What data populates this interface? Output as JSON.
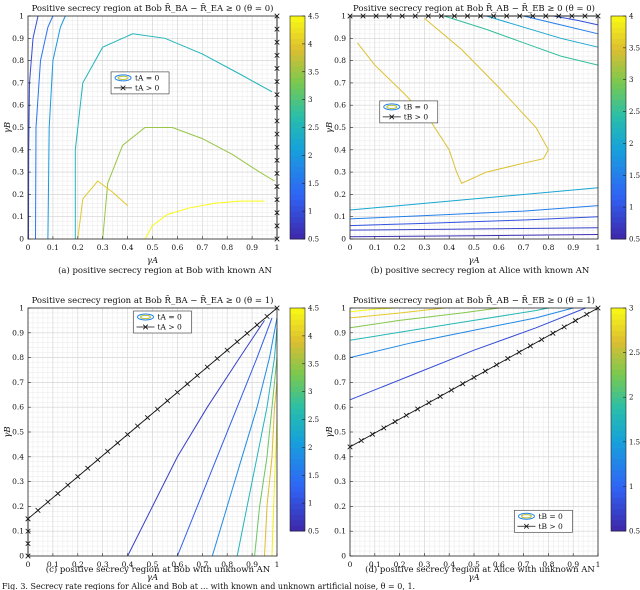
{
  "chart_data": [
    {
      "type": "contour",
      "title": "Positive secrecy region at Bob R̄_BA − R̄_EA ≥ 0 (θ = 0)",
      "xlabel": "γA",
      "ylabel": "γB",
      "xlim": [
        0,
        1
      ],
      "ylim": [
        0,
        1
      ],
      "xticks": [
        "0",
        "0.1",
        "0.2",
        "0.3",
        "0.4",
        "0.5",
        "0.6",
        "0.7",
        "0.8",
        "0.9",
        "1"
      ],
      "yticks": [
        "0",
        "0.1",
        "0.2",
        "0.3",
        "0.4",
        "0.5",
        "0.6",
        "0.7",
        "0.8",
        "0.9",
        "1"
      ],
      "colorbar": {
        "min": 0.5,
        "max": 4.5,
        "ticks": [
          "0.5",
          "1",
          "1.5",
          "2",
          "2.5",
          "3",
          "3.5",
          "4",
          "4.5"
        ]
      },
      "legend": {
        "position": "center",
        "entries": [
          "tA = 0",
          "tA > 0"
        ]
      },
      "caption": "(a)  positive secrecy region at Bob with known AN",
      "boundary": [
        {
          "x": 1,
          "y": 0
        },
        {
          "x": 1,
          "y": 1
        }
      ],
      "contours": [
        {
          "level": 1.0,
          "points": [
            [
              0.002,
              0
            ],
            [
              0.003,
              0.4
            ],
            [
              0.006,
              0.7
            ],
            [
              0.02,
              0.9
            ],
            [
              0.04,
              1
            ]
          ]
        },
        {
          "level": 1.5,
          "points": [
            [
              0.03,
              0
            ],
            [
              0.032,
              0.5
            ],
            [
              0.05,
              0.8
            ],
            [
              0.08,
              0.95
            ],
            [
              0.1,
              1
            ]
          ]
        },
        {
          "level": 2.0,
          "points": [
            [
              0.08,
              0
            ],
            [
              0.085,
              0.5
            ],
            [
              0.1,
              0.8
            ],
            [
              0.13,
              0.95
            ],
            [
              0.15,
              1
            ]
          ]
        },
        {
          "level": 2.5,
          "points": [
            [
              0.19,
              0
            ],
            [
              0.19,
              0.4
            ],
            [
              0.22,
              0.7
            ],
            [
              0.3,
              0.86
            ],
            [
              0.42,
              0.92
            ],
            [
              0.55,
              0.9
            ],
            [
              0.7,
              0.83
            ],
            [
              0.85,
              0.74
            ],
            [
              0.98,
              0.66
            ]
          ]
        },
        {
          "level": 3.5,
          "points": [
            [
              0.3,
              0
            ],
            [
              0.32,
              0.25
            ],
            [
              0.38,
              0.42
            ],
            [
              0.47,
              0.5
            ],
            [
              0.58,
              0.5
            ],
            [
              0.7,
              0.45
            ],
            [
              0.82,
              0.38
            ],
            [
              0.93,
              0.3
            ],
            [
              0.99,
              0.26
            ]
          ]
        },
        {
          "level": 4.0,
          "points": [
            [
              0.2,
              0
            ],
            [
              0.22,
              0.18
            ],
            [
              0.28,
              0.26
            ],
            [
              0.34,
              0.21
            ],
            [
              0.4,
              0.15
            ]
          ]
        },
        {
          "level": 4.5,
          "points": [
            [
              0.47,
              0
            ],
            [
              0.5,
              0.06
            ],
            [
              0.56,
              0.11
            ],
            [
              0.65,
              0.14
            ],
            [
              0.75,
              0.16
            ],
            [
              0.85,
              0.17
            ],
            [
              0.95,
              0.17
            ]
          ]
        }
      ]
    },
    {
      "type": "contour",
      "title": "Positive secrecy region at Bob R̄_AB − R̄_EB ≥ 0 (θ = 0)",
      "xlabel": "γA",
      "ylabel": "γB",
      "xlim": [
        0,
        1
      ],
      "ylim": [
        0,
        1
      ],
      "xticks": [
        "0",
        "0.1",
        "0.2",
        "0.3",
        "0.4",
        "0.5",
        "0.6",
        "0.7",
        "0.8",
        "0.9",
        "1"
      ],
      "yticks": [
        "0",
        "0.1",
        "0.2",
        "0.3",
        "0.4",
        "0.5",
        "0.6",
        "0.7",
        "0.8",
        "0.9",
        "1"
      ],
      "colorbar": {
        "min": 0.5,
        "max": 4,
        "ticks": [
          "0.5",
          "1",
          "1.5",
          "2",
          "2.5",
          "3",
          "3.5",
          "4"
        ]
      },
      "legend": {
        "position": "center-left",
        "entries": [
          "tB = 0",
          "tB > 0"
        ]
      },
      "caption": "(b)  positive secrecy region at Alice with known AN",
      "boundary": [
        {
          "x": 0,
          "y": 1
        },
        {
          "x": 1,
          "y": 1
        }
      ],
      "contours": [
        {
          "level": 0.6,
          "points": [
            [
              0,
              0.01
            ],
            [
              0.5,
              0.015
            ],
            [
              1,
              0.02
            ]
          ]
        },
        {
          "level": 0.8,
          "points": [
            [
              0,
              0.04
            ],
            [
              0.5,
              0.045
            ],
            [
              1,
              0.05
            ]
          ]
        },
        {
          "level": 1.0,
          "points": [
            [
              0,
              0.06
            ],
            [
              0.3,
              0.07
            ],
            [
              0.7,
              0.085
            ],
            [
              1,
              0.1
            ]
          ]
        },
        {
          "level": 1.5,
          "points": [
            [
              0,
              0.09
            ],
            [
              0.3,
              0.105
            ],
            [
              0.7,
              0.125
            ],
            [
              1,
              0.15
            ]
          ]
        },
        {
          "level": 2.0,
          "points": [
            [
              0,
              0.13
            ],
            [
              0.2,
              0.15
            ],
            [
              0.5,
              0.18
            ],
            [
              0.8,
              0.21
            ],
            [
              1,
              0.23
            ]
          ]
        },
        {
          "level": 3.5,
          "points": [
            [
              0.03,
              0.88
            ],
            [
              0.1,
              0.78
            ],
            [
              0.22,
              0.65
            ],
            [
              0.33,
              0.52
            ],
            [
              0.4,
              0.4
            ],
            [
              0.43,
              0.3
            ],
            [
              0.45,
              0.25
            ],
            [
              0.55,
              0.3
            ],
            [
              0.7,
              0.34
            ],
            [
              0.78,
              0.36
            ],
            [
              0.8,
              0.4
            ],
            [
              0.75,
              0.5
            ],
            [
              0.6,
              0.68
            ],
            [
              0.45,
              0.85
            ],
            [
              0.3,
              0.99
            ]
          ]
        },
        {
          "level": 2.5,
          "points": [
            [
              0.38,
              1
            ],
            [
              0.55,
              0.94
            ],
            [
              0.7,
              0.88
            ],
            [
              0.85,
              0.82
            ],
            [
              1,
              0.78
            ]
          ]
        },
        {
          "level": 2.0,
          "points": [
            [
              0.55,
              1
            ],
            [
              0.7,
              0.95
            ],
            [
              0.85,
              0.9
            ],
            [
              1,
              0.86
            ]
          ]
        },
        {
          "level": 1.5,
          "points": [
            [
              0.7,
              1
            ],
            [
              0.85,
              0.96
            ],
            [
              1,
              0.92
            ]
          ]
        },
        {
          "level": 1.0,
          "points": [
            [
              0.82,
              1
            ],
            [
              0.92,
              0.98
            ],
            [
              1,
              0.96
            ]
          ]
        }
      ]
    },
    {
      "type": "contour",
      "title": "Positive secrecy region at Bob R̄_BA − R̄_EA ≥ 0 (θ = 1)",
      "xlabel": "γA",
      "ylabel": "γB",
      "xlim": [
        0,
        1
      ],
      "ylim": [
        0,
        1
      ],
      "xticks": [
        "0",
        "0.1",
        "0.2",
        "0.3",
        "0.4",
        "0.5",
        "0.6",
        "0.7",
        "0.8",
        "0.9",
        "1"
      ],
      "yticks": [
        "0",
        "0.1",
        "0.2",
        "0.3",
        "0.4",
        "0.5",
        "0.6",
        "0.7",
        "0.8",
        "0.9",
        "1"
      ],
      "colorbar": {
        "min": 0.5,
        "max": 4.5,
        "ticks": [
          "0.5",
          "1",
          "1.5",
          "2",
          "2.5",
          "3",
          "3.5",
          "4",
          "4.5"
        ]
      },
      "legend": {
        "position": "top-center",
        "entries": [
          "tA = 0",
          "tA > 0"
        ]
      },
      "caption": "(c)  positive secrecy region at Bob with unknown AN",
      "boundary": [
        {
          "x": 0,
          "y": 0
        },
        {
          "x": 0,
          "y": 0.15
        },
        {
          "x": 1,
          "y": 1
        }
      ],
      "contours": [
        {
          "level": 0.8,
          "points": [
            [
              0.4,
              0
            ],
            [
              0.5,
              0.2
            ],
            [
              0.6,
              0.4
            ],
            [
              0.72,
              0.6
            ],
            [
              0.85,
              0.8
            ],
            [
              0.95,
              0.95
            ]
          ]
        },
        {
          "level": 1.2,
          "points": [
            [
              0.6,
              0
            ],
            [
              0.68,
              0.2
            ],
            [
              0.76,
              0.4
            ],
            [
              0.84,
              0.6
            ],
            [
              0.92,
              0.8
            ],
            [
              0.98,
              0.96
            ]
          ]
        },
        {
          "level": 1.8,
          "points": [
            [
              0.74,
              0
            ],
            [
              0.8,
              0.2
            ],
            [
              0.86,
              0.4
            ],
            [
              0.92,
              0.6
            ],
            [
              0.97,
              0.8
            ],
            [
              1,
              0.96
            ]
          ]
        },
        {
          "level": 2.5,
          "points": [
            [
              0.84,
              0
            ],
            [
              0.88,
              0.2
            ],
            [
              0.92,
              0.4
            ],
            [
              0.96,
              0.6
            ],
            [
              0.99,
              0.8
            ],
            [
              1,
              0.92
            ]
          ]
        },
        {
          "level": 3.2,
          "points": [
            [
              0.91,
              0
            ],
            [
              0.93,
              0.2
            ],
            [
              0.96,
              0.4
            ],
            [
              0.98,
              0.6
            ],
            [
              1,
              0.8
            ]
          ]
        },
        {
          "level": 3.9,
          "points": [
            [
              0.95,
              0
            ],
            [
              0.96,
              0.2
            ],
            [
              0.98,
              0.4
            ],
            [
              0.99,
              0.6
            ],
            [
              1,
              0.7
            ]
          ]
        },
        {
          "level": 4.4,
          "points": [
            [
              0.98,
              0
            ],
            [
              0.99,
              0.3
            ],
            [
              1,
              0.55
            ]
          ]
        }
      ]
    },
    {
      "type": "contour",
      "title": "Positive secrecy region at Bob R̄_AB − R̄_EB ≥ 0 (θ = 1)",
      "xlabel": "γA",
      "ylabel": "γB",
      "xlim": [
        0,
        1
      ],
      "ylim": [
        0,
        1
      ],
      "xticks": [
        "0",
        "0.1",
        "0.2",
        "0.3",
        "0.4",
        "0.5",
        "0.6",
        "0.7",
        "0.8",
        "0.9",
        "1"
      ],
      "yticks": [
        "0",
        "0.1",
        "0.2",
        "0.3",
        "0.4",
        "0.5",
        "0.6",
        "0.7",
        "0.8",
        "0.9",
        "1"
      ],
      "colorbar": {
        "min": 0.5,
        "max": 3,
        "ticks": [
          "0.5",
          "1",
          "1.5",
          "2",
          "2.5",
          "3"
        ]
      },
      "legend": {
        "position": "bottom-right",
        "entries": [
          "tB = 0",
          "tB > 0"
        ]
      },
      "caption": "(d)  positive secrecy region at Alice with unknown AN",
      "boundary": [
        {
          "x": 0,
          "y": 0.44
        },
        {
          "x": 1,
          "y": 1
        }
      ],
      "contours": [
        {
          "level": 0.8,
          "points": [
            [
              0,
              0.63
            ],
            [
              0.25,
              0.73
            ],
            [
              0.5,
              0.83
            ],
            [
              0.75,
              0.92
            ],
            [
              0.95,
              1
            ]
          ]
        },
        {
          "level": 1.3,
          "points": [
            [
              0,
              0.8
            ],
            [
              0.25,
              0.86
            ],
            [
              0.5,
              0.91
            ],
            [
              0.75,
              0.96
            ],
            [
              0.9,
              1
            ]
          ]
        },
        {
          "level": 1.8,
          "points": [
            [
              0,
              0.87
            ],
            [
              0.25,
              0.91
            ],
            [
              0.5,
              0.95
            ],
            [
              0.75,
              0.99
            ],
            [
              0.8,
              1
            ]
          ]
        },
        {
          "level": 2.3,
          "points": [
            [
              0,
              0.92
            ],
            [
              0.2,
              0.95
            ],
            [
              0.45,
              0.98
            ],
            [
              0.6,
              1
            ]
          ]
        },
        {
          "level": 2.7,
          "points": [
            [
              0,
              0.96
            ],
            [
              0.2,
              0.98
            ],
            [
              0.38,
              1
            ]
          ]
        },
        {
          "level": 3.0,
          "points": [
            [
              0,
              0.985
            ],
            [
              0.1,
              0.995
            ],
            [
              0.18,
              1
            ]
          ]
        }
      ]
    }
  ],
  "figure": {
    "caption": "Fig. 3.  Secrecy rate regions for Alice and Bob at ... with known and unknown artificial noise, θ = 0, 1."
  }
}
